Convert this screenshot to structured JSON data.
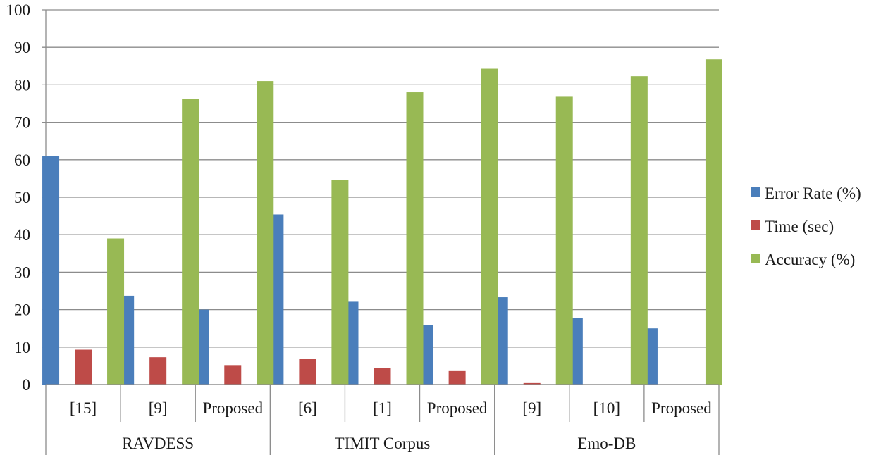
{
  "chart_data": {
    "type": "bar",
    "title": "",
    "xlabel": "",
    "ylabel": "",
    "ylim": [
      0,
      100
    ],
    "yticks": [
      0,
      10,
      20,
      30,
      40,
      50,
      60,
      70,
      80,
      90,
      100
    ],
    "grid": "horizontal",
    "legend_position": "right",
    "groups": [
      {
        "name": "RAVDESS",
        "categories": [
          "[15]",
          "[9]",
          "Proposed"
        ]
      },
      {
        "name": "TIMIT Corpus",
        "categories": [
          "[6]",
          "[1]",
          "Proposed"
        ]
      },
      {
        "name": "Emo-DB",
        "categories": [
          "[9]",
          "[10]",
          "Proposed"
        ]
      }
    ],
    "series": [
      {
        "name": "Error Rate (%)",
        "color": "#4a7ebb",
        "values": [
          61,
          23.7,
          20,
          45.4,
          22.1,
          15.8,
          23.3,
          17.8,
          15
        ]
      },
      {
        "name": "Time (sec)",
        "color": "#be4b48",
        "values": [
          9.3,
          7.3,
          5.2,
          6.8,
          4.4,
          3.6,
          0.4,
          0,
          0
        ]
      },
      {
        "name": "Accuracy (%)",
        "color": "#98b954",
        "values": [
          39,
          76.3,
          81,
          54.6,
          78,
          84.3,
          76.8,
          82.3,
          86.8
        ]
      }
    ]
  }
}
